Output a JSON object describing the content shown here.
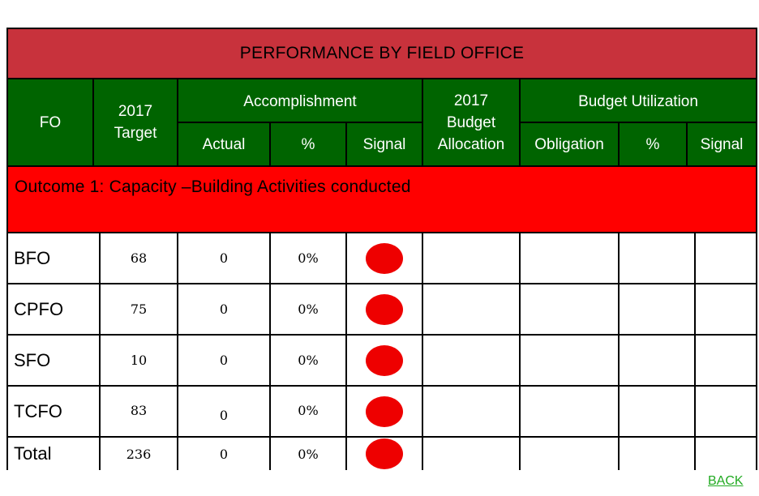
{
  "title": "PERFORMANCE BY FIELD OFFICE",
  "headers": {
    "fo": "FO",
    "target_year": "2017",
    "target_label": "Target",
    "accomplishment": "Accomplishment",
    "actual": "Actual",
    "percent": "%",
    "signal": "Signal",
    "budget_year": "2017",
    "budget_label": "Budget",
    "allocation_label": "Allocation",
    "budget_utilization": "Budget Utilization",
    "obligation": "Obligation",
    "bu_percent": "%",
    "bu_signal": "Signal"
  },
  "outcome_label": "Outcome 1: Capacity –Building  Activities conducted",
  "rows": [
    {
      "fo": "BFO",
      "target": "68",
      "actual": "0",
      "percent": "0%",
      "signal_color": "#ee0000"
    },
    {
      "fo": "CPFO",
      "target": "75",
      "actual": "0",
      "percent": "0%",
      "signal_color": "#ee0000"
    },
    {
      "fo": "SFO",
      "target": "10",
      "actual": "0",
      "percent": "0%",
      "signal_color": "#ee0000"
    },
    {
      "fo": "TCFO",
      "target": "83",
      "actual": "0",
      "percent": "0%",
      "signal_color": "#ee0000"
    },
    {
      "fo": "Total",
      "target": "236",
      "actual": "0",
      "percent": "0%",
      "signal_color": "#ee0000"
    }
  ],
  "back_link": "BACK",
  "colors": {
    "title_bg": "#c8323c",
    "header_bg": "#006400",
    "outcome_bg": "#ff0000",
    "signal": "#ee0000",
    "link": "#22aa22"
  }
}
